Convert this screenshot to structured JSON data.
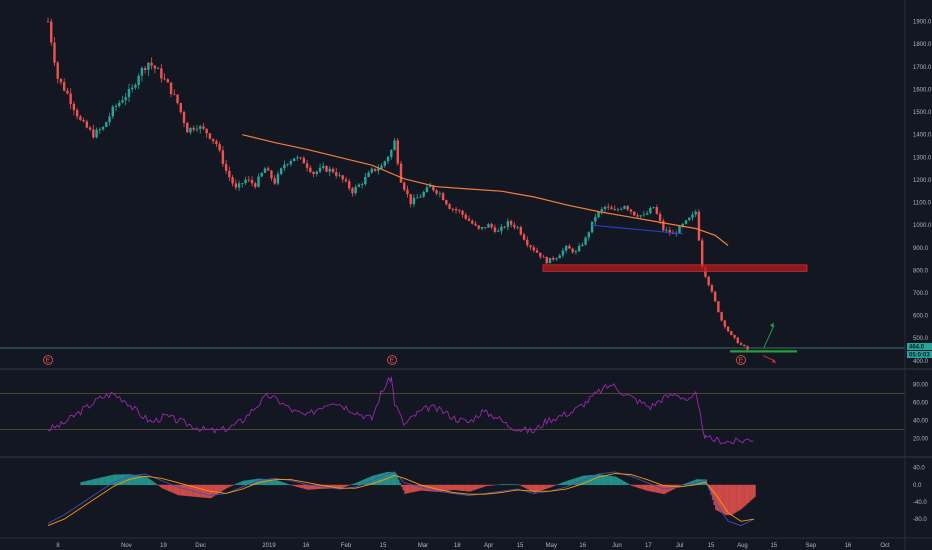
{
  "chart_data": [
    {
      "type": "candlestick",
      "panel": "price",
      "y_axis_ticks": [
        "1900.0",
        "1800.0",
        "1700.0",
        "1600.0",
        "1500.0",
        "1400.0",
        "1300.0",
        "1200.0",
        "1100.0",
        "1000.0",
        "900.0",
        "800.0",
        "700.0",
        "600.0",
        "500.0",
        "400.0"
      ],
      "ylim": [
        395,
        1960
      ],
      "price_path": [
        [
          0,
          1900
        ],
        [
          3,
          1650
        ],
        [
          6,
          1580
        ],
        [
          10,
          1460
        ],
        [
          14,
          1400
        ],
        [
          17,
          1430
        ],
        [
          20,
          1510
        ],
        [
          23,
          1560
        ],
        [
          26,
          1600
        ],
        [
          28,
          1670
        ],
        [
          31,
          1720
        ],
        [
          34,
          1680
        ],
        [
          37,
          1620
        ],
        [
          40,
          1540
        ],
        [
          43,
          1420
        ],
        [
          46,
          1440
        ],
        [
          49,
          1410
        ],
        [
          52,
          1360
        ],
        [
          55,
          1240
        ],
        [
          58,
          1160
        ],
        [
          61,
          1200
        ],
        [
          64,
          1180
        ],
        [
          67,
          1250
        ],
        [
          70,
          1190
        ],
        [
          73,
          1270
        ],
        [
          76,
          1300
        ],
        [
          79,
          1280
        ],
        [
          82,
          1230
        ],
        [
          85,
          1250
        ],
        [
          88,
          1240
        ],
        [
          91,
          1200
        ],
        [
          94,
          1150
        ],
        [
          97,
          1190
        ],
        [
          100,
          1240
        ],
        [
          103,
          1260
        ],
        [
          106,
          1330
        ],
        [
          107,
          1370
        ],
        [
          109,
          1200
        ],
        [
          112,
          1100
        ],
        [
          115,
          1130
        ],
        [
          118,
          1170
        ],
        [
          121,
          1140
        ],
        [
          124,
          1080
        ],
        [
          127,
          1060
        ],
        [
          130,
          1020
        ],
        [
          133,
          980
        ],
        [
          136,
          1000
        ],
        [
          139,
          970
        ],
        [
          142,
          1010
        ],
        [
          145,
          990
        ],
        [
          148,
          920
        ],
        [
          151,
          880
        ],
        [
          154,
          840
        ],
        [
          157,
          860
        ],
        [
          160,
          900
        ],
        [
          163,
          880
        ],
        [
          166,
          940
        ],
        [
          169,
          1040
        ],
        [
          172,
          1080
        ],
        [
          175,
          1060
        ],
        [
          178,
          1090
        ],
        [
          181,
          1050
        ],
        [
          184,
          1040
        ],
        [
          187,
          1080
        ],
        [
          190,
          980
        ],
        [
          193,
          960
        ],
        [
          196,
          1000
        ],
        [
          199,
          1040
        ],
        [
          200,
          1060
        ],
        [
          202,
          820
        ],
        [
          205,
          700
        ],
        [
          208,
          580
        ],
        [
          211,
          510
        ],
        [
          214,
          470
        ],
        [
          216,
          450
        ]
      ],
      "series": [
        {
          "name": "",
          "kind": "moving-average",
          "color": "#f57c3a",
          "x": [
            60,
            70,
            80,
            90,
            100,
            110,
            120,
            130,
            140,
            150,
            160,
            170,
            180,
            190,
            200,
            206,
            210
          ],
          "y": [
            1400,
            1365,
            1335,
            1300,
            1265,
            1205,
            1170,
            1160,
            1150,
            1125,
            1090,
            1060,
            1035,
            1010,
            985,
            955,
            910
          ]
        },
        {
          "name": "",
          "kind": "trendline",
          "color": "#2d3fd6",
          "x": [
            168,
            196
          ],
          "y": [
            1000,
            962
          ]
        }
      ],
      "annotations": {
        "resistance_zone": {
          "y_range": [
            800,
            820
          ],
          "x_range": [
            138,
            222
          ],
          "color": "#b3191f"
        },
        "support_line": {
          "y": 442,
          "x_range": [
            202,
            220
          ],
          "color": "#1fa33a"
        },
        "up_arrow": {
          "from": [
            210,
            460
          ],
          "to": [
            214,
            570
          ],
          "color": "#1fa33a"
        },
        "down_arrow": {
          "from": [
            208,
            424
          ],
          "to": [
            213,
            390
          ],
          "color": "#d32f2f"
        },
        "horizontal_line": {
          "y": 457,
          "color": "#4b8d8d"
        }
      },
      "price_tags": [
        {
          "text": "464.0",
          "color": "#26a69a"
        },
        {
          "text": "05:0:03",
          "color": "#26a69a"
        }
      ],
      "earnings_markers": {
        "label": "E",
        "x": [
          0,
          107,
          204
        ]
      }
    },
    {
      "type": "line",
      "panel": "oscillator",
      "y_axis_ticks": [
        "80.00",
        "60.00",
        "40.00",
        "20.00"
      ],
      "ylim": [
        5,
        95
      ],
      "levels": [
        70,
        30
      ],
      "series": [
        {
          "name": "",
          "color": "#9c27b0",
          "x": [
            0,
            4,
            8,
            12,
            16,
            20,
            24,
            28,
            32,
            36,
            40,
            44,
            48,
            52,
            56,
            60,
            64,
            68,
            72,
            76,
            80,
            84,
            88,
            92,
            96,
            100,
            103,
            106,
            107,
            110,
            114,
            118,
            122,
            126,
            130,
            134,
            138,
            142,
            146,
            150,
            154,
            158,
            162,
            166,
            170,
            174,
            178,
            182,
            186,
            190,
            194,
            198,
            200,
            203,
            207,
            211,
            215,
            218
          ],
          "y": [
            30,
            35,
            45,
            55,
            65,
            70,
            62,
            48,
            38,
            45,
            40,
            35,
            30,
            28,
            32,
            40,
            55,
            68,
            60,
            50,
            45,
            55,
            62,
            55,
            48,
            42,
            72,
            88,
            60,
            35,
            48,
            55,
            50,
            42,
            38,
            50,
            45,
            35,
            30,
            28,
            40,
            45,
            50,
            60,
            72,
            80,
            70,
            62,
            55,
            65,
            70,
            62,
            68,
            20,
            18,
            16,
            18,
            20
          ]
        }
      ]
    },
    {
      "type": "line",
      "panel": "macd",
      "y_axis_ticks": [
        "40.0",
        "0.0",
        "-40.0",
        "-80.0"
      ],
      "ylim": [
        -110,
        60
      ],
      "series": [
        {
          "name": "",
          "color": "#3f51b5",
          "x": [
            0,
            5,
            10,
            15,
            20,
            25,
            30,
            35,
            40,
            45,
            50,
            55,
            60,
            65,
            70,
            75,
            80,
            85,
            90,
            95,
            100,
            105,
            107,
            110,
            115,
            120,
            125,
            130,
            135,
            140,
            145,
            150,
            155,
            160,
            165,
            170,
            175,
            180,
            185,
            190,
            195,
            200,
            203,
            206,
            210,
            214,
            218
          ],
          "y": [
            -90,
            -70,
            -45,
            -20,
            5,
            20,
            25,
            10,
            -5,
            -15,
            -25,
            -20,
            -5,
            10,
            15,
            10,
            0,
            -5,
            -10,
            -5,
            10,
            25,
            30,
            5,
            -5,
            -15,
            -20,
            -25,
            -20,
            -15,
            -10,
            -20,
            -15,
            -5,
            10,
            25,
            30,
            20,
            5,
            -10,
            -5,
            5,
            10,
            -40,
            -85,
            -95,
            -80
          ]
        },
        {
          "name": "",
          "color": "#ff9800",
          "x": [
            0,
            5,
            10,
            15,
            20,
            25,
            30,
            35,
            40,
            45,
            50,
            55,
            60,
            65,
            70,
            75,
            80,
            85,
            90,
            95,
            100,
            105,
            107,
            110,
            115,
            120,
            125,
            130,
            135,
            140,
            145,
            150,
            155,
            160,
            165,
            170,
            175,
            180,
            185,
            190,
            195,
            200,
            203,
            206,
            210,
            214,
            218
          ],
          "y": [
            -95,
            -80,
            -55,
            -30,
            -5,
            12,
            20,
            15,
            5,
            -5,
            -15,
            -20,
            -10,
            5,
            12,
            12,
            5,
            -2,
            -8,
            -8,
            2,
            15,
            22,
            15,
            0,
            -10,
            -18,
            -22,
            -22,
            -18,
            -12,
            -15,
            -15,
            -10,
            2,
            18,
            26,
            24,
            12,
            -2,
            -5,
            0,
            6,
            -20,
            -65,
            -85,
            -80
          ]
        }
      ],
      "histogram": {
        "up_color": "#26a69a",
        "down_color": "#ef5350"
      }
    }
  ],
  "x_axis_labels": [
    {
      "text": "8",
      "x": 0
    },
    {
      "text": "Nov",
      "x": 24
    },
    {
      "text": "19",
      "x": 37
    },
    {
      "text": "Dec",
      "x": 50
    },
    {
      "text": "2019",
      "x": 74
    },
    {
      "text": "16",
      "x": 87
    },
    {
      "text": "Feb",
      "x": 101
    },
    {
      "text": "15",
      "x": 114
    },
    {
      "text": "Mar",
      "x": 128
    },
    {
      "text": "18",
      "x": 140
    },
    {
      "text": "Apr",
      "x": 151
    },
    {
      "text": "15",
      "x": 162
    },
    {
      "text": "May",
      "x": 173
    },
    {
      "text": "16",
      "x": 184
    },
    {
      "text": "Jun",
      "x": 196
    },
    {
      "text": "17",
      "x": 207
    },
    {
      "text": "Jul",
      "x": 218
    },
    {
      "text": "15",
      "x": 229
    },
    {
      "text": "Aug",
      "x": 240
    },
    {
      "text": "15",
      "x": 251
    },
    {
      "text": "Sep",
      "x": 264
    },
    {
      "text": "16",
      "x": 277
    },
    {
      "text": "Oct",
      "x": 290
    }
  ],
  "theme": {
    "background": "#131722",
    "up_candle": "#26a69a",
    "down_candle": "#ef5350",
    "grid": "#2a2e39",
    "axis_text": "#b2b5be"
  }
}
